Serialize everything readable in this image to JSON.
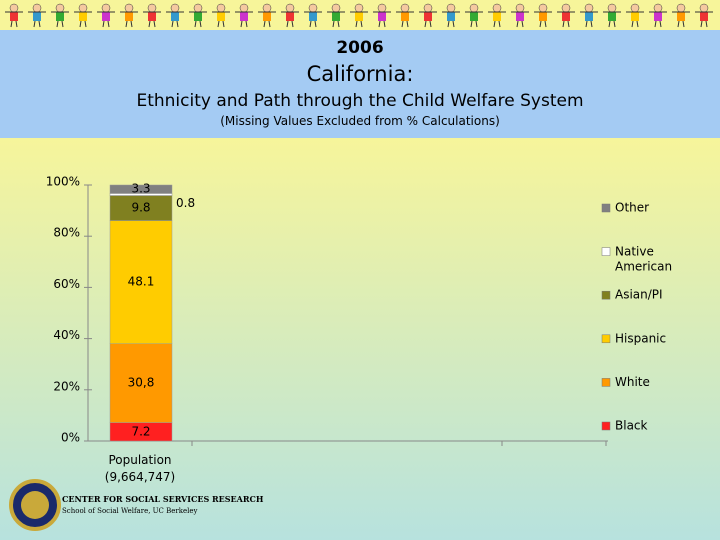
{
  "header": {
    "year": "2006",
    "state": "California:",
    "title": "Ethnicity and Path through the Child Welfare System",
    "note": "(Missing Values Excluded from % Calculations)"
  },
  "footer": {
    "org": "CENTER FOR SOCIAL SERVICES RESEARCH",
    "school": "School of Social Welfare, UC Berkeley"
  },
  "chart_data": {
    "type": "stacked_bar",
    "categories": [
      "Population\n(9,664,747)"
    ],
    "series": [
      {
        "name": "Black",
        "color": "#ff2020",
        "values": [
          7.2
        ]
      },
      {
        "name": "White",
        "color": "#ff9900",
        "values": [
          30.8
        ],
        "value_labels": [
          "30,8"
        ]
      },
      {
        "name": "Hispanic",
        "color": "#ffcc00",
        "values": [
          48.1
        ]
      },
      {
        "name": "Asian/PI",
        "color": "#808020",
        "values": [
          9.8
        ]
      },
      {
        "name": "Native American",
        "color": "#ffffff",
        "values": [
          0.8
        ]
      },
      {
        "name": "Other",
        "color": "#808080",
        "values": [
          3.3
        ]
      }
    ],
    "ylim": [
      0,
      100
    ],
    "yticks": [
      {
        "value": 0,
        "label": "0%"
      },
      {
        "value": 20,
        "label": "20%"
      },
      {
        "value": 40,
        "label": "40%"
      },
      {
        "value": 60,
        "label": "60%"
      },
      {
        "value": 80,
        "label": "80%"
      },
      {
        "value": 100,
        "label": "100%"
      }
    ]
  }
}
